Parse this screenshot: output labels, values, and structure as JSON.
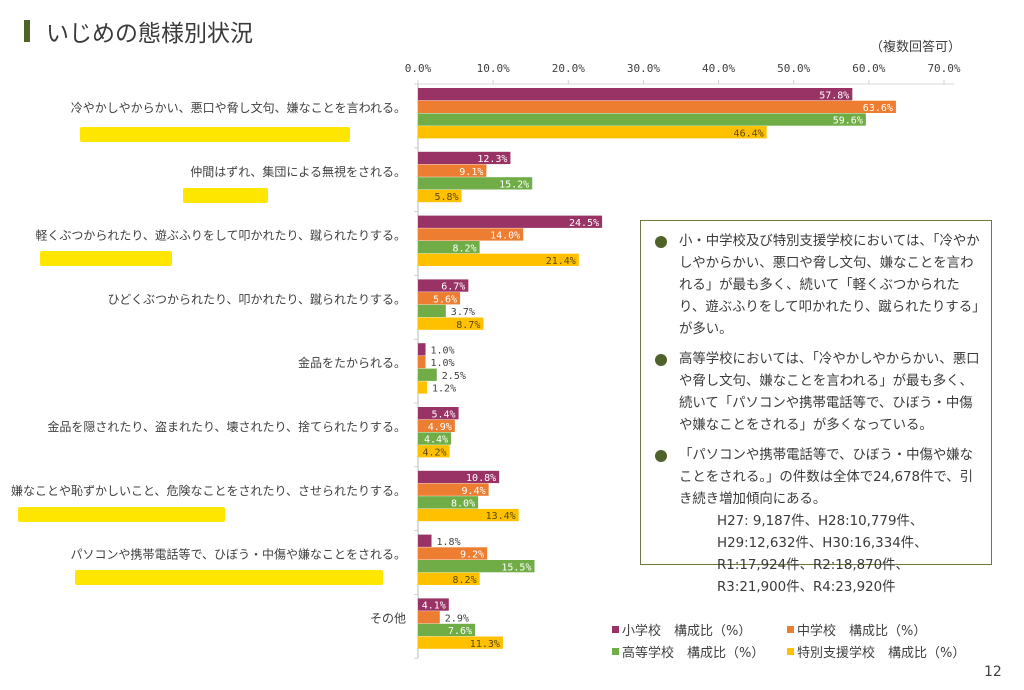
{
  "title": "いじめの態様別状況",
  "note": "（複数回答可）",
  "page_number": "12",
  "colors": {
    "elementary": "#993366",
    "junior": "#ED7D31",
    "high": "#70AD47",
    "special": "#FFC000",
    "highlight": "#FFE600",
    "accent": "#4F6228"
  },
  "chart_data": {
    "type": "bar",
    "orientation": "horizontal",
    "xlim": [
      0,
      70
    ],
    "ticks": [
      "0.0%",
      "10.0%",
      "20.0%",
      "30.0%",
      "40.0%",
      "50.0%",
      "60.0%",
      "70.0%"
    ],
    "tick_values": [
      0,
      10,
      20,
      30,
      40,
      50,
      60,
      70
    ],
    "categories": [
      "冷やかしやからかい、悪口や脅し文句、嫌なことを言われる。",
      "仲間はずれ、集団による無視をされる。",
      "軽くぶつかられたり、遊ぶふりをして叩かれたり、蹴られたりする。",
      "ひどくぶつかられたり、叩かれたり、蹴られたりする。",
      "金品をたかられる。",
      "金品を隠されたり、盗まれたり、壊されたり、捨てられたりする。",
      "嫌なことや恥ずかしいこと、危険なことをされたり、させられたりする。",
      "パソコンや携帯電話等で、ひぼう・中傷や嫌なことをされる。",
      "その他"
    ],
    "highlighted_categories": [
      0,
      1,
      2,
      6,
      7
    ],
    "series": [
      {
        "name": "小学校 構成比(%)",
        "key": "elementary",
        "values": [
          57.8,
          12.3,
          24.5,
          6.7,
          1.0,
          5.4,
          10.8,
          1.8,
          4.1
        ]
      },
      {
        "name": "中学校 構成比(%)",
        "key": "junior",
        "values": [
          63.6,
          9.1,
          14.0,
          5.6,
          1.0,
          4.9,
          9.4,
          9.2,
          2.9
        ]
      },
      {
        "name": "高等学校 構成比(%)",
        "key": "high",
        "values": [
          59.6,
          15.2,
          8.2,
          3.7,
          2.5,
          4.4,
          8.0,
          15.5,
          7.6
        ]
      },
      {
        "name": "特別支援学校 構成比(%)",
        "key": "special",
        "values": [
          46.4,
          5.8,
          21.4,
          8.7,
          1.2,
          4.2,
          13.4,
          8.2,
          11.3
        ]
      }
    ],
    "legend": [
      "小学校　構成比（%）",
      "中学校　構成比（%）",
      "高等学校　構成比（%）",
      "特別支援学校　構成比（%）"
    ],
    "legend_position": "bottom-right"
  },
  "summary": {
    "bullets": [
      "小・中学校及び特別支援学校においては、「冷やかしやからかい、悪口や脅し文句、嫌なことを言われる」が最も多く、続いて「軽くぶつかられたり、遊ぶふりをして叩かれたり、蹴られたりする」が多い。",
      "高等学校においては、「冷やかしやからかい、悪口や脅し文句、嫌なことを言われる」が最も多く、続いて「パソコンや携帯電話等で、ひぼう・中傷や嫌なことをされる」が多くなっている。",
      "「パソコンや携帯電話等で、ひぼう・中傷や嫌なことをされる。」の件数は全体で24,678件で、引き続き増加傾向にある。"
    ],
    "counts": [
      "H27: 9,187件、H28:10,779件、",
      "H29:12,632件、H30:16,334件、",
      "R1:17,924件、R2:18,870件、",
      "R3:21,900件、R4:23,920件"
    ]
  }
}
